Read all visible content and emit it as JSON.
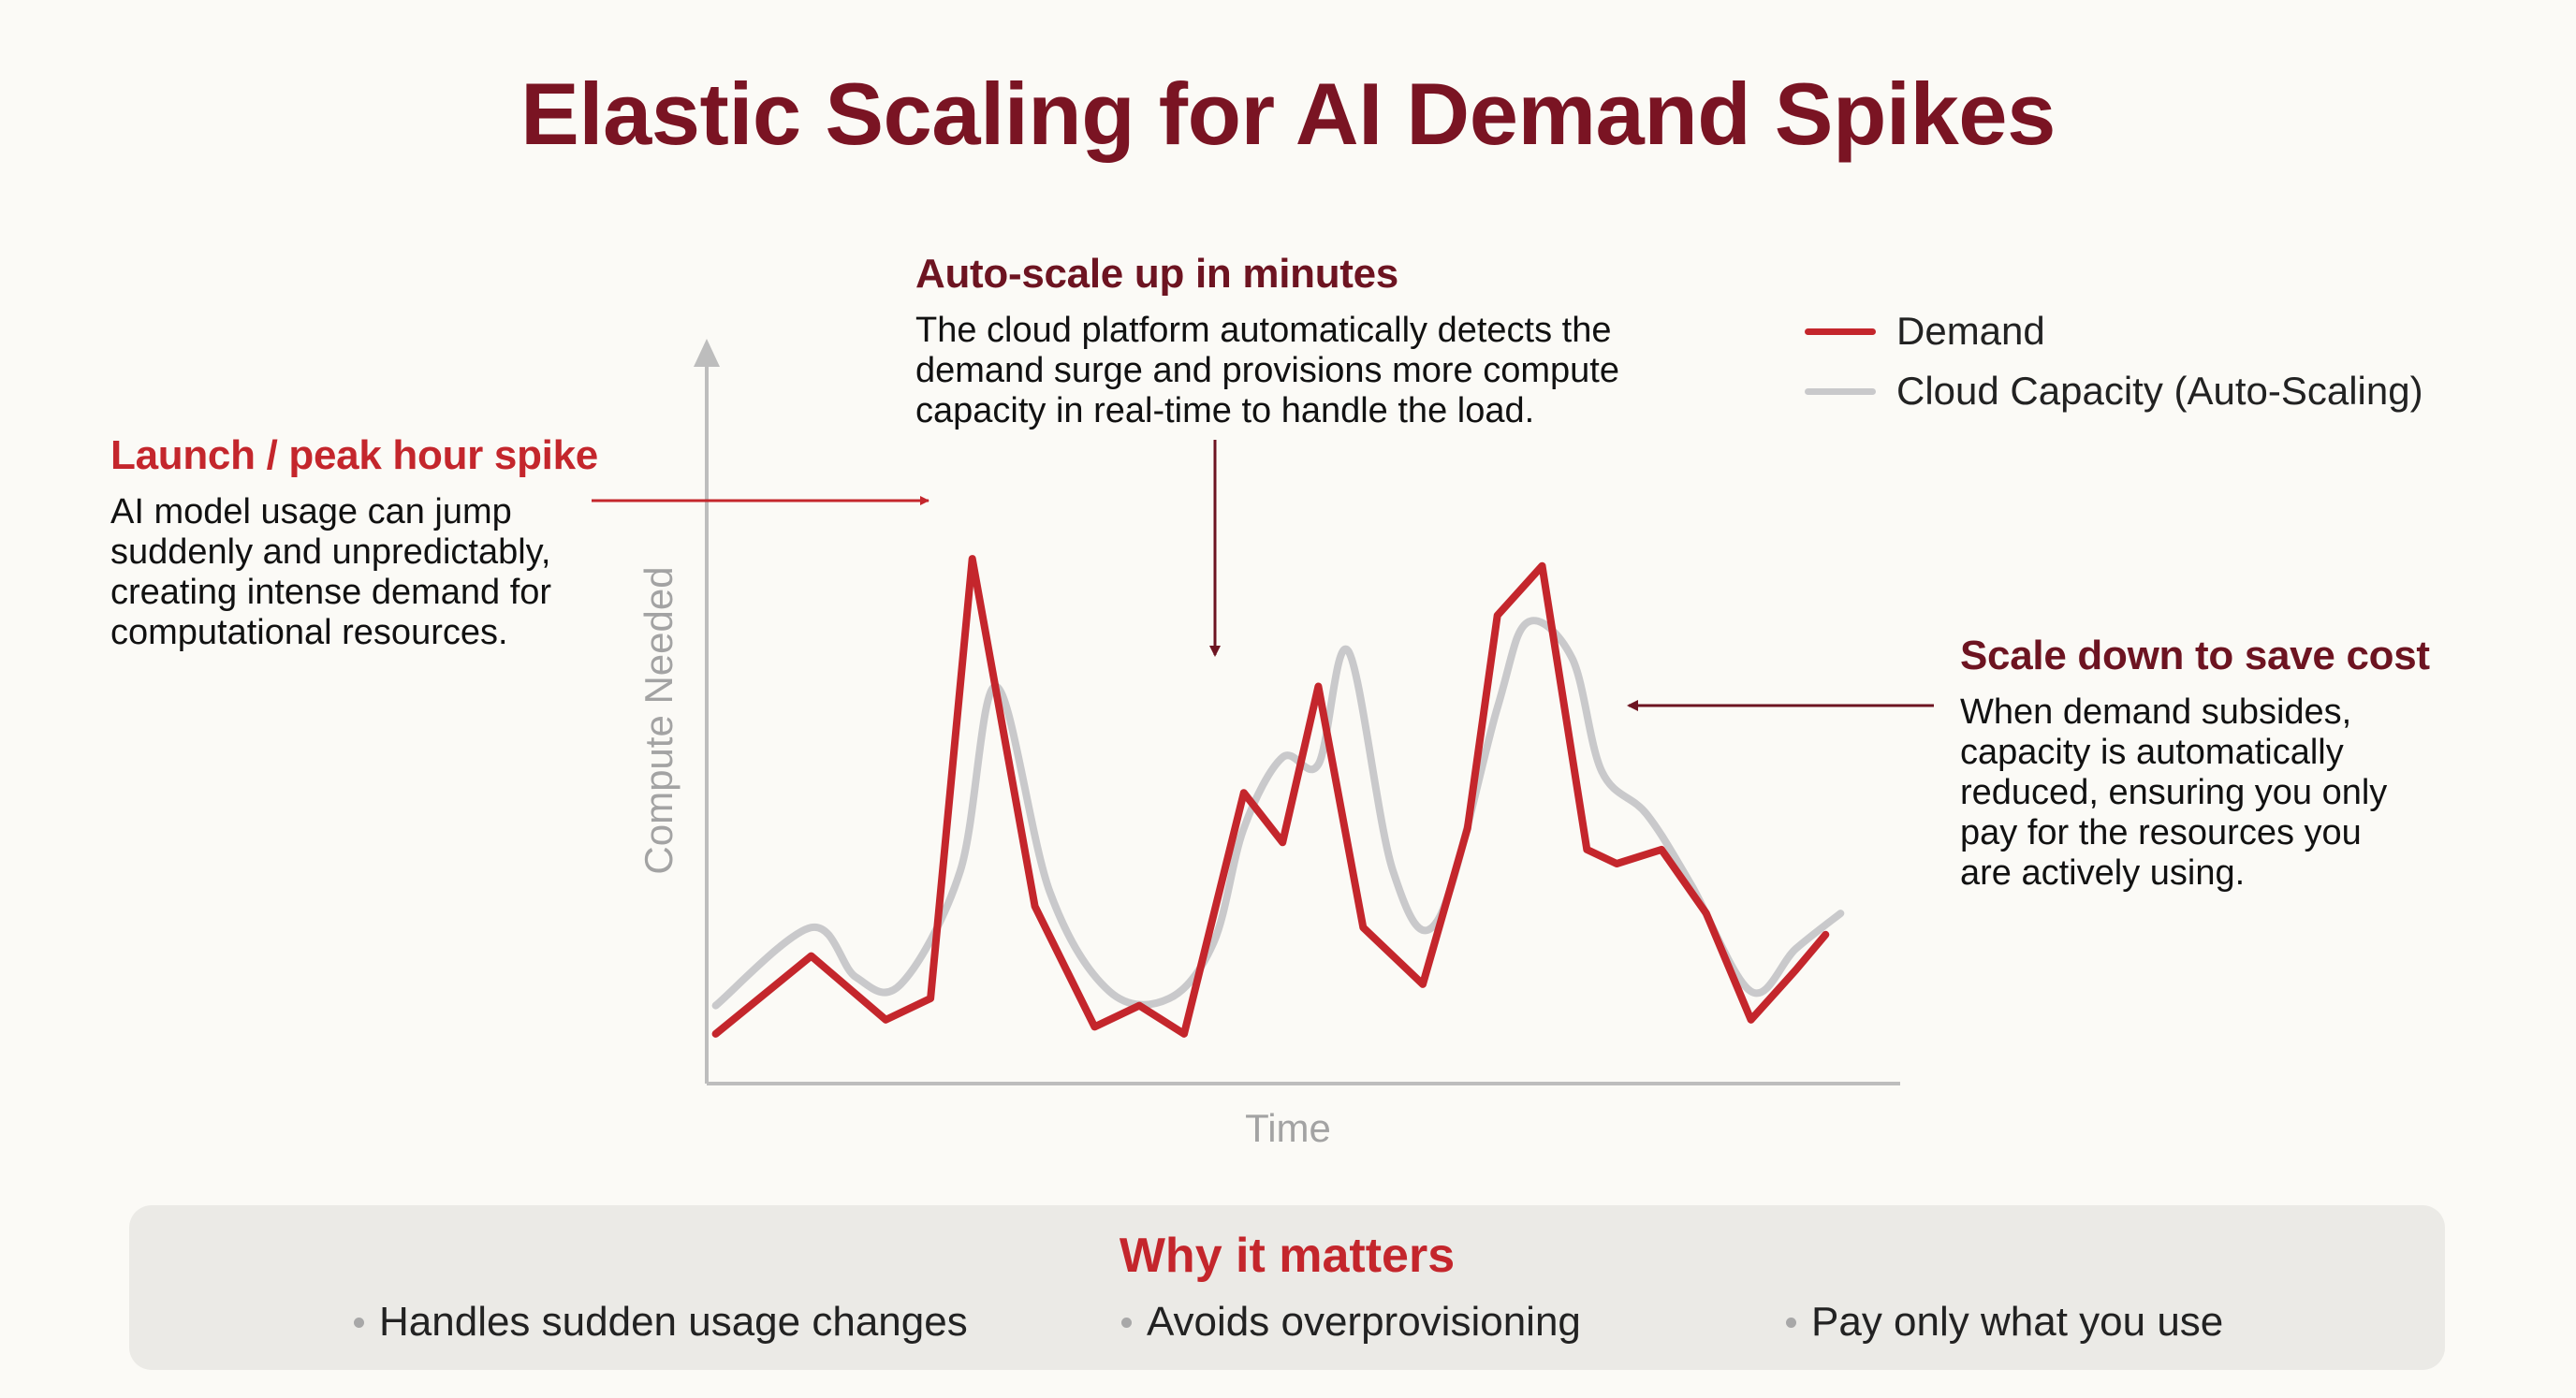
{
  "title": "Elastic Scaling for AI Demand Spikes",
  "annotations": {
    "launch": {
      "heading": "Launch / peak hour spike",
      "lines": [
        "AI model usage can jump",
        "suddenly and unpredictably,",
        "creating intense demand for",
        "computational resources."
      ]
    },
    "autoscale": {
      "heading": "Auto-scale up in minutes",
      "lines": [
        "The cloud platform automatically detects the",
        "demand surge and provisions more compute",
        "capacity in real-time to handle the load."
      ]
    },
    "scaledown": {
      "heading": "Scale down to save cost",
      "lines": [
        "When demand subsides,",
        "capacity is automatically",
        "reduced, ensuring you only",
        "pay for the resources you",
        "are actively using."
      ]
    }
  },
  "legend": {
    "demand": "Demand",
    "capacity": "Cloud Capacity (Auto-Scaling)"
  },
  "colors": {
    "demand": "#c4262c",
    "capacity": "#c9c9cb",
    "axis": "#bdbdbd",
    "title": "#7a1423",
    "arrow_dark": "#6d1421",
    "arrow_red": "#c4262c"
  },
  "chart_data": {
    "type": "line",
    "xlabel": "Time",
    "ylabel": "Compute Needed",
    "x": [
      0.3,
      3.5,
      6.0,
      7.5,
      8.9,
      11.0,
      13.0,
      14.5,
      16.0,
      18.0,
      19.3,
      20.5,
      22.0,
      24.0,
      25.5,
      26.5,
      28.0,
      29.5,
      30.5,
      32.0,
      33.5,
      35.0,
      36.5,
      37.5
    ],
    "series": [
      {
        "name": "Demand",
        "color": "#c4262c",
        "values": [
          7,
          18,
          9,
          12,
          74,
          25,
          8,
          11,
          7,
          41,
          34,
          56,
          22,
          14,
          36,
          66,
          73,
          33,
          31,
          33,
          24,
          9,
          16,
          21
        ]
      },
      {
        "name": "Cloud Capacity (Auto-Scaling)",
        "color": "#c9c9cb",
        "x": [
          0.3,
          3.5,
          5.0,
          6.5,
          8.5,
          9.7,
          11.5,
          13.5,
          15.5,
          17.0,
          18.0,
          19.3,
          20.5,
          21.5,
          23.0,
          24.5,
          26.5,
          27.5,
          29.0,
          30.0,
          31.5,
          33.0,
          35.0,
          36.5,
          38.0
        ],
        "values": [
          11,
          22,
          15,
          14,
          30,
          56,
          27,
          13,
          12,
          20,
          36,
          46,
          45,
          61,
          30,
          23,
          53,
          65,
          60,
          44,
          38,
          28,
          13,
          19,
          24
        ]
      }
    ],
    "xlim": [
      0,
      40
    ],
    "ylim": [
      0,
      100
    ],
    "grid": false,
    "legend_position": "top-right"
  },
  "panel": {
    "title": "Why it matters",
    "items": [
      "Handles sudden usage changes",
      "Avoids overprovisioning",
      "Pay only what you use"
    ]
  }
}
